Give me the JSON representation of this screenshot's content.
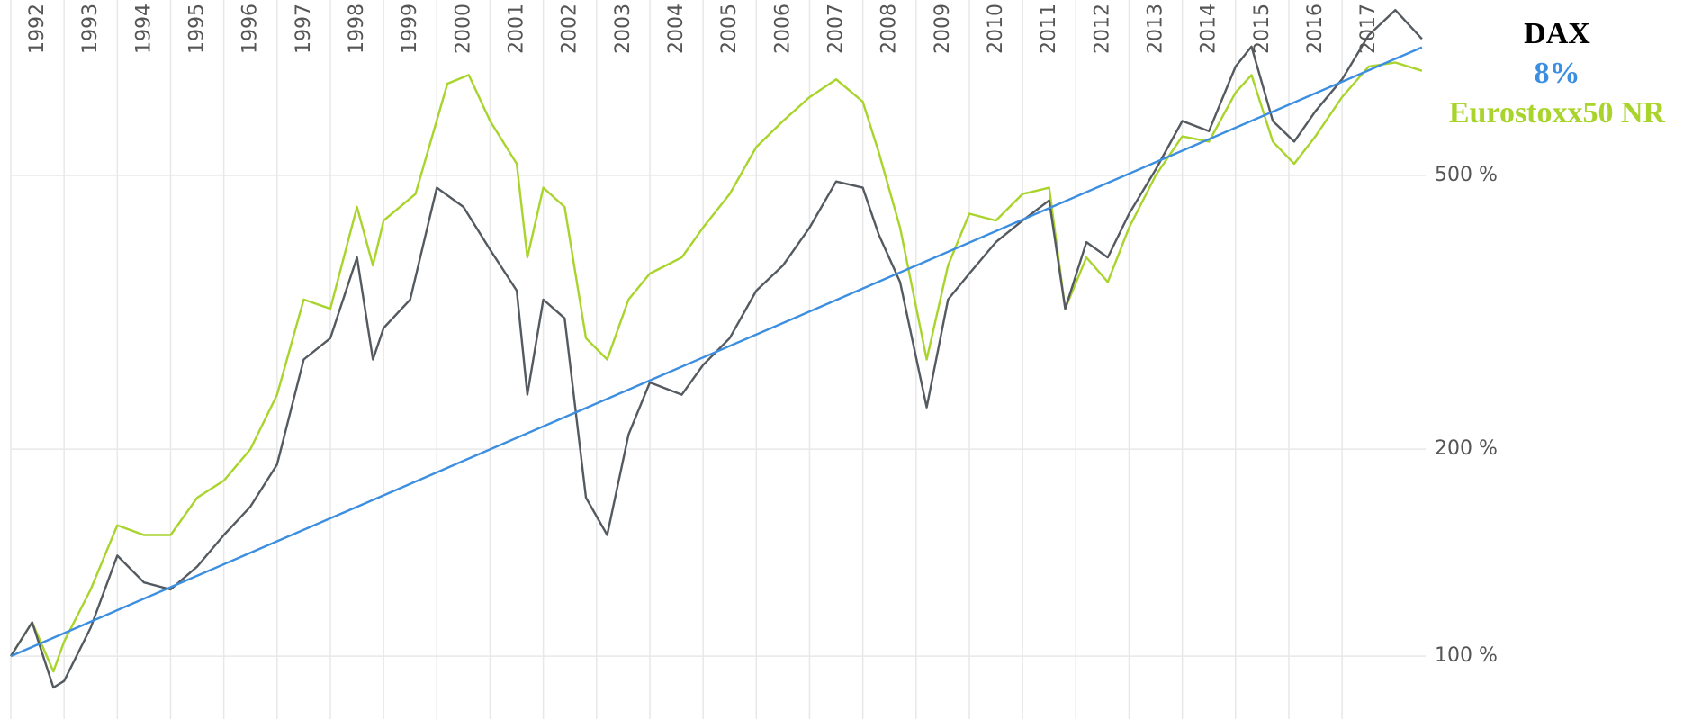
{
  "chart_data": {
    "type": "line",
    "log_scale_y": true,
    "grid": true,
    "legend_position": "right",
    "xlim": [
      1992,
      2018.57
    ],
    "xticks": [
      1992,
      1993,
      1994,
      1995,
      1996,
      1997,
      1998,
      1999,
      2000,
      2001,
      2002,
      2003,
      2004,
      2005,
      2006,
      2007,
      2008,
      2009,
      2010,
      2011,
      2012,
      2013,
      2014,
      2015,
      2016,
      2017
    ],
    "ylim": [
      81,
      900
    ],
    "yticks": [
      {
        "value": 100,
        "label": "100 %"
      },
      {
        "value": 200,
        "label": "200 %"
      },
      {
        "value": 500,
        "label": "500 %"
      }
    ],
    "series": [
      {
        "name": "DAX",
        "color": "#545a5f",
        "x": [
          1992.0,
          1992.4,
          1992.8,
          1993.0,
          1993.5,
          1994.0,
          1994.5,
          1995.0,
          1995.5,
          1996.0,
          1996.5,
          1997.0,
          1997.5,
          1998.0,
          1998.5,
          1998.8,
          1999.0,
          1999.5,
          2000.0,
          2000.5,
          2001.0,
          2001.5,
          2001.7,
          2002.0,
          2002.4,
          2002.8,
          2003.2,
          2003.6,
          2004.0,
          2004.6,
          2005.0,
          2005.5,
          2006.0,
          2006.5,
          2007.0,
          2007.5,
          2008.0,
          2008.3,
          2008.7,
          2009.2,
          2009.6,
          2010.0,
          2010.5,
          2011.0,
          2011.5,
          2011.8,
          2012.2,
          2012.6,
          2013.0,
          2013.5,
          2014.0,
          2014.5,
          2015.0,
          2015.3,
          2015.7,
          2016.1,
          2016.5,
          2017.0,
          2017.5,
          2018.0,
          2018.5
        ],
        "values": [
          100,
          112,
          90,
          92,
          110,
          140,
          128,
          125,
          135,
          150,
          165,
          190,
          270,
          290,
          380,
          270,
          300,
          330,
          480,
          450,
          390,
          340,
          240,
          330,
          310,
          170,
          150,
          210,
          250,
          240,
          265,
          290,
          340,
          370,
          420,
          490,
          480,
          410,
          350,
          230,
          330,
          360,
          400,
          430,
          460,
          320,
          400,
          380,
          440,
          510,
          600,
          580,
          720,
          770,
          600,
          560,
          620,
          690,
          800,
          870,
          790
        ]
      },
      {
        "name": "8%",
        "color": "#3b8ee0",
        "x": [
          1992.0,
          2018.5
        ],
        "values": [
          100,
          768
        ]
      },
      {
        "name": "Eurostoxx50 NR",
        "color": "#a9d42c",
        "x": [
          1992.0,
          1992.4,
          1992.8,
          1993.0,
          1993.5,
          1994.0,
          1994.5,
          1995.0,
          1995.5,
          1996.0,
          1996.5,
          1997.0,
          1997.5,
          1998.0,
          1998.5,
          1998.8,
          1999.0,
          1999.6,
          2000.2,
          2000.6,
          2001.0,
          2001.5,
          2001.7,
          2002.0,
          2002.4,
          2002.8,
          2003.2,
          2003.6,
          2004.0,
          2004.6,
          2005.0,
          2005.5,
          2006.0,
          2006.5,
          2007.0,
          2007.5,
          2008.0,
          2008.3,
          2008.7,
          2009.2,
          2009.6,
          2010.0,
          2010.5,
          2011.0,
          2011.5,
          2011.8,
          2012.2,
          2012.6,
          2013.0,
          2013.5,
          2014.0,
          2014.5,
          2015.0,
          2015.3,
          2015.7,
          2016.1,
          2016.5,
          2017.0,
          2017.5,
          2018.0,
          2018.5
        ],
        "values": [
          100,
          112,
          95,
          105,
          125,
          155,
          150,
          150,
          170,
          180,
          200,
          240,
          330,
          320,
          450,
          370,
          430,
          470,
          680,
          700,
          600,
          520,
          380,
          480,
          450,
          290,
          270,
          330,
          360,
          380,
          420,
          470,
          550,
          600,
          650,
          690,
          640,
          540,
          420,
          270,
          370,
          440,
          430,
          470,
          480,
          320,
          380,
          350,
          420,
          500,
          570,
          560,
          660,
          700,
          560,
          520,
          570,
          650,
          720,
          730,
          710
        ]
      }
    ]
  }
}
